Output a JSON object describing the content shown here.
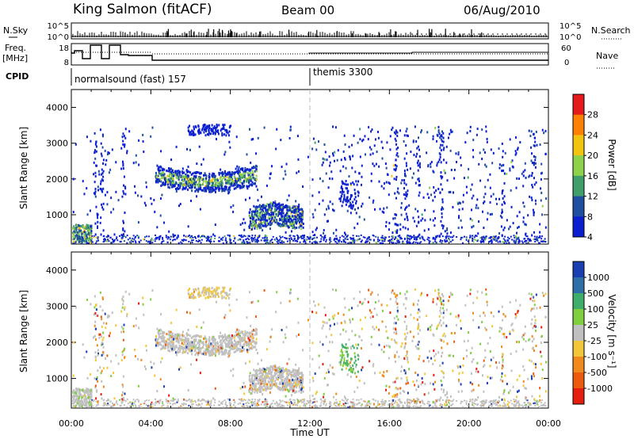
{
  "header": {
    "title": "King Salmon (fitACF)",
    "beam": "Beam 00",
    "date": "06/Aug/2010"
  },
  "top_strip": {
    "left_labels": {
      "nsky": "N.Sky",
      "freq": "Freq.",
      "mhz": "[MHz]",
      "cpid": "CPID"
    },
    "right_labels": {
      "nsearch": "N.Search",
      "nave": "Nave"
    },
    "nsky_ticks": [
      "10^5",
      "10^0"
    ],
    "nsearch_ticks": [
      "10^5",
      "10^0"
    ],
    "freq_ticks": [
      "18",
      "8"
    ],
    "nave_ticks": [
      "60",
      "0"
    ],
    "cpid_segments": [
      {
        "label": "normalsound (fast) 157",
        "start_hour": 0
      },
      {
        "label": "themis 3300",
        "start_hour": 12
      }
    ]
  },
  "chart_data": [
    {
      "type": "heatmap",
      "name": "power-panel",
      "ylabel": "Slant Range [km]",
      "xlabel": "",
      "y_ticks": [
        "4000",
        "3000",
        "2000",
        "1000"
      ],
      "ylim": [
        180,
        4500
      ],
      "colorbar": {
        "label": "Power [dB]",
        "ticks": [
          "28",
          "24",
          "20",
          "16",
          "12",
          "8",
          "4"
        ],
        "colors": [
          "#e41a1c",
          "#ff7f00",
          "#f1c40f",
          "#8ed14b",
          "#3f9e6a",
          "#1f4fa0",
          "#0b1fd1"
        ]
      }
    },
    {
      "type": "heatmap",
      "name": "velocity-panel",
      "ylabel": "Slant Range [km]",
      "xlabel": "Time UT",
      "x_ticks": [
        "00:00",
        "04:00",
        "08:00",
        "12:00",
        "16:00",
        "20:00",
        "00:00"
      ],
      "y_ticks": [
        "4000",
        "3000",
        "2000",
        "1000"
      ],
      "ylim": [
        180,
        4500
      ],
      "colorbar": {
        "label": "Velocity [m s⁻¹]",
        "ticks": [
          "1000",
          "500",
          "100",
          "25",
          "-25",
          "-100",
          "-500",
          "-1000"
        ],
        "colors": [
          "#1b3fb0",
          "#2f6fa8",
          "#3fae6a",
          "#7fcf3f",
          "#c0c0c0",
          "#f3c73a",
          "#f08a1c",
          "#ec5a10",
          "#e61e10"
        ]
      }
    }
  ]
}
